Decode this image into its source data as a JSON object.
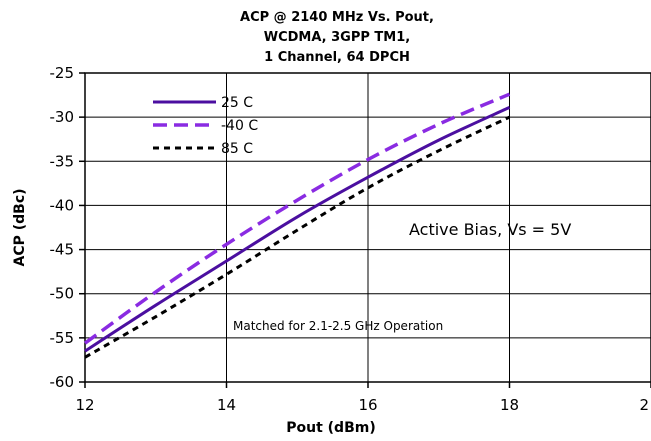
{
  "chart_data": {
    "type": "line",
    "title": [
      "ACP @ 2140 MHz Vs. Pout,",
      "WCDMA, 3GPP TM1,",
      "1 Channel, 64 DPCH"
    ],
    "xlabel": "Pout (dBm)",
    "ylabel": "ACP (dBc)",
    "xlim": [
      12,
      20
    ],
    "ylim": [
      -60,
      -25
    ],
    "x_ticks": [
      "12",
      "14",
      "16",
      "18",
      "2"
    ],
    "y_ticks": [
      "-25",
      "-30",
      "-35",
      "-40",
      "-45",
      "-50",
      "-55",
      "-60"
    ],
    "grid": true,
    "legend_position": "top-left",
    "series": [
      {
        "name": "25 C",
        "color": "#4B0FA0",
        "style": "solid",
        "x": [
          12,
          13,
          14,
          15,
          16,
          17,
          18
        ],
        "y": [
          -56.5,
          -51.3,
          -46.3,
          -41.3,
          -36.8,
          -32.6,
          -28.9
        ]
      },
      {
        "name": "-40 C",
        "color": "#8A2BE2",
        "style": "dashed",
        "x": [
          12,
          13,
          14,
          15,
          16,
          17,
          18
        ],
        "y": [
          -55.6,
          -49.8,
          -44.4,
          -39.4,
          -34.8,
          -30.8,
          -27.4
        ]
      },
      {
        "name": "85 C",
        "color": "#000000",
        "style": "dotted",
        "x": [
          12,
          13,
          14,
          15,
          16,
          17,
          18
        ],
        "y": [
          -57.2,
          -52.6,
          -47.8,
          -42.8,
          -38.0,
          -33.8,
          -30.0
        ]
      }
    ],
    "annotations": {
      "bias": "Active Bias, Vs = 5V",
      "matched": "Matched for 2.1-2.5 GHz Operation"
    }
  }
}
